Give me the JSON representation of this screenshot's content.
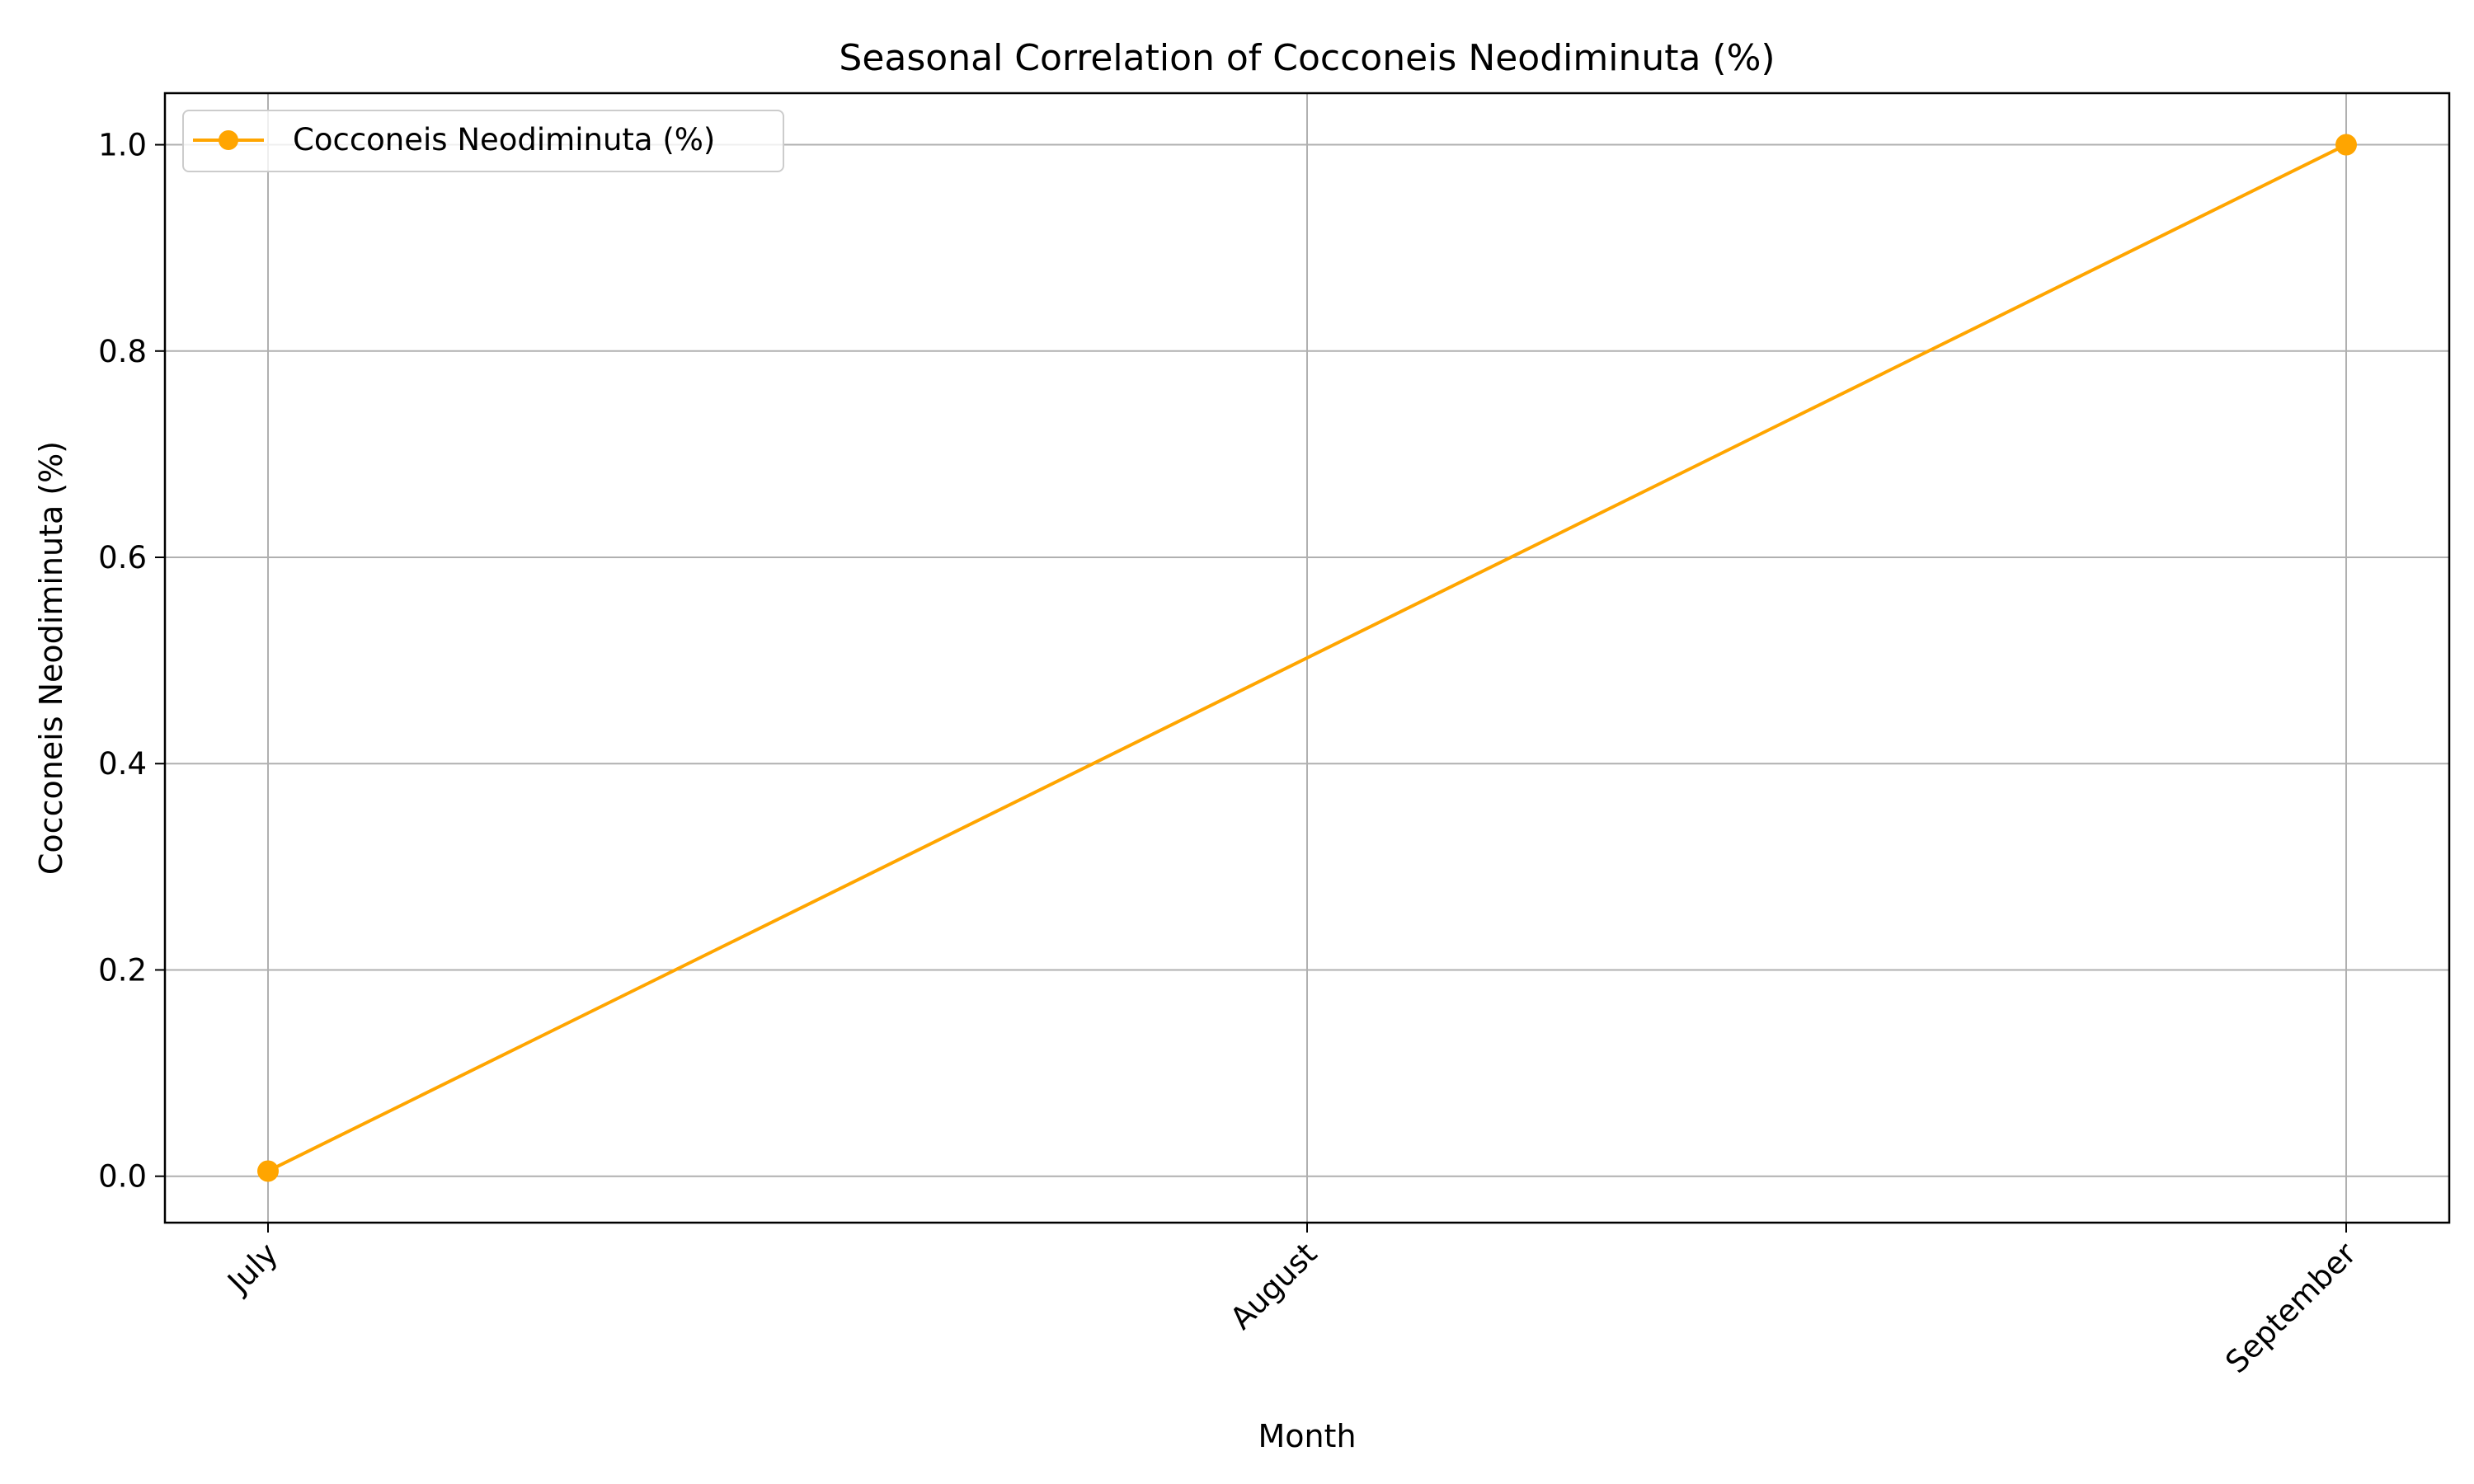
{
  "chart_data": {
    "type": "line",
    "title": "Seasonal Correlation of Cocconeis Neodiminuta (%)",
    "xlabel": "Month",
    "ylabel": "Cocconeis Neodiminuta (%)",
    "categories": [
      "July",
      "August",
      "September"
    ],
    "series": [
      {
        "name": "Cocconeis Neodiminuta (%)",
        "color": "#FFA500",
        "marker": "circle",
        "points": [
          {
            "x": "July",
            "y": 0.005
          },
          {
            "x": "September",
            "y": 1.0
          }
        ]
      }
    ],
    "ylim": [
      -0.045,
      1.05
    ],
    "yticks": [
      0.0,
      0.2,
      0.4,
      0.6,
      0.8,
      1.0
    ],
    "ytick_labels": [
      "0.0",
      "0.2",
      "0.4",
      "0.6",
      "0.8",
      "1.0"
    ],
    "xtick_rotation_deg": 45,
    "grid": true,
    "legend_position": "top-left"
  }
}
